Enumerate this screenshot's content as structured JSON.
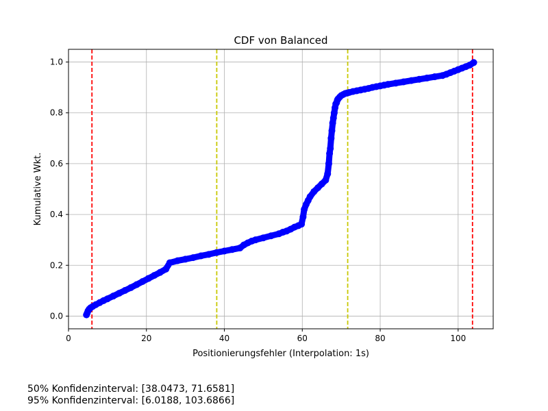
{
  "chart_data": {
    "type": "scatter",
    "title": "CDF von Balanced",
    "xlabel": "Positionierungsfehler (Interpolation: 1s)",
    "ylabel": "Kumulative Wkt.",
    "xlim": [
      0,
      109
    ],
    "ylim": [
      -0.05,
      1.05
    ],
    "xticks": [
      0,
      20,
      40,
      60,
      80,
      100
    ],
    "yticks": [
      0.0,
      0.2,
      0.4,
      0.6,
      0.8,
      1.0
    ],
    "grid": true,
    "series": [
      {
        "color": "#0000ff",
        "x": [
          4.6,
          4.8,
          5.0,
          5.3,
          5.7,
          6.2,
          7.0,
          8.0,
          9.0,
          10.0,
          11.5,
          13.0,
          14.5,
          16.0,
          17.5,
          19.0,
          20.5,
          22.0,
          23.5,
          25.0,
          26.0,
          28.0,
          30.0,
          32.0,
          34.0,
          36.0,
          38.0,
          40.0,
          42.0,
          44.0,
          45.0,
          46.0,
          47.0,
          48.0,
          50.0,
          52.0,
          54.0,
          55.0,
          56.0,
          57.0,
          58.0,
          59.0,
          59.8,
          60.2,
          60.5,
          61.0,
          61.5,
          62.0,
          63.0,
          64.0,
          65.0,
          66.0,
          66.5,
          66.8,
          67.0,
          67.2,
          67.4,
          67.6,
          67.8,
          68.0,
          68.2,
          68.4,
          68.6,
          68.8,
          69.0,
          69.2,
          69.6,
          70.0,
          70.5,
          71.0,
          71.5,
          72.0,
          73.0,
          74.0,
          75.0,
          76.0,
          77.0,
          78.0,
          79.0,
          80.0,
          81.0,
          82.0,
          84.0,
          86.0,
          88.0,
          90.0,
          92.0,
          94.0,
          96.0,
          97.0,
          98.0,
          99.0,
          100.0,
          101.0,
          102.0,
          103.0,
          104.0
        ],
        "y": [
          0.005,
          0.012,
          0.02,
          0.027,
          0.033,
          0.038,
          0.045,
          0.053,
          0.061,
          0.068,
          0.079,
          0.09,
          0.101,
          0.112,
          0.124,
          0.136,
          0.148,
          0.16,
          0.172,
          0.185,
          0.21,
          0.218,
          0.224,
          0.23,
          0.237,
          0.243,
          0.25,
          0.256,
          0.262,
          0.268,
          0.28,
          0.288,
          0.295,
          0.3,
          0.308,
          0.316,
          0.324,
          0.33,
          0.335,
          0.342,
          0.35,
          0.356,
          0.362,
          0.39,
          0.42,
          0.44,
          0.455,
          0.47,
          0.49,
          0.505,
          0.52,
          0.535,
          0.56,
          0.6,
          0.64,
          0.66,
          0.7,
          0.73,
          0.76,
          0.78,
          0.8,
          0.82,
          0.835,
          0.84,
          0.85,
          0.855,
          0.862,
          0.868,
          0.872,
          0.876,
          0.878,
          0.88,
          0.884,
          0.887,
          0.89,
          0.893,
          0.896,
          0.9,
          0.903,
          0.906,
          0.909,
          0.912,
          0.917,
          0.922,
          0.927,
          0.932,
          0.937,
          0.942,
          0.947,
          0.952,
          0.958,
          0.964,
          0.97,
          0.976,
          0.982,
          0.988,
          0.998
        ]
      }
    ],
    "vlines": [
      {
        "x": 6.0188,
        "color": "#ff0000"
      },
      {
        "x": 38.0473,
        "color": "#c8c800"
      },
      {
        "x": 71.6581,
        "color": "#c8c800"
      },
      {
        "x": 103.6866,
        "color": "#ff0000"
      }
    ]
  },
  "footer": {
    "ci50": "50% Konfidenzinterval: [38.0473, 71.6581]",
    "ci95": "95% Konfidenzinterval: [6.0188, 103.6866]"
  }
}
